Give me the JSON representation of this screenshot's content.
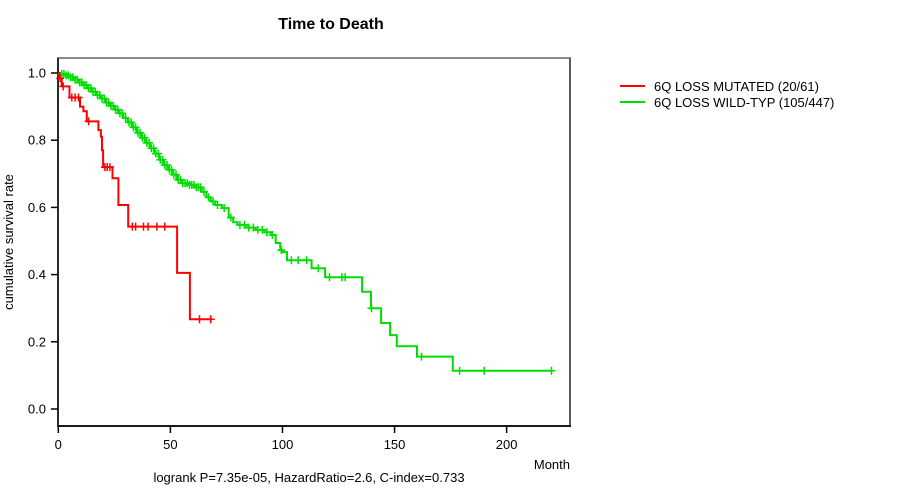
{
  "chart_data": {
    "type": "line",
    "subtype": "kaplan-meier-step",
    "title": "Time to Death",
    "xlabel": "Month",
    "ylabel": "cumulative survival rate",
    "xlim": [
      0,
      228
    ],
    "ylim": [
      0.0,
      1.0
    ],
    "x_ticks": [
      0,
      50,
      100,
      150,
      200
    ],
    "y_ticks": [
      0.0,
      0.2,
      0.4,
      0.6,
      0.8,
      1.0
    ],
    "grid": false,
    "legend_position": "right-outside",
    "annotation": "logrank P=7.35e-05, HazardRatio=2.6, C-index=0.733",
    "series": [
      {
        "name": "6Q LOSS MUTATED (20/61)",
        "color": "#ff0000",
        "steps": [
          [
            0,
            1.0
          ],
          [
            0.5,
            0.984
          ],
          [
            1.5,
            0.96
          ],
          [
            5,
            0.927
          ],
          [
            9.7,
            0.9
          ],
          [
            11.2,
            0.886
          ],
          [
            12.7,
            0.856
          ],
          [
            17.9,
            0.83
          ],
          [
            19,
            0.81
          ],
          [
            19.5,
            0.77
          ],
          [
            20,
            0.72
          ],
          [
            24.2,
            0.687
          ],
          [
            26.8,
            0.607
          ],
          [
            31.2,
            0.543
          ],
          [
            53,
            0.405
          ],
          [
            58.7,
            0.267
          ]
        ],
        "censor_times": [
          0.8,
          2.2,
          6,
          7.5,
          9,
          13.5,
          20.8,
          21.8,
          23,
          33,
          34.5,
          38,
          40,
          44,
          47.5,
          63,
          68
        ],
        "end_time": 68.5
      },
      {
        "name": "6Q LOSS WILD-TYP (105/447)",
        "color": "#00dd00",
        "steps": [
          [
            0,
            1.0
          ],
          [
            1,
            0.997
          ],
          [
            3,
            0.993
          ],
          [
            5,
            0.987
          ],
          [
            7,
            0.98
          ],
          [
            9,
            0.972
          ],
          [
            11,
            0.964
          ],
          [
            13,
            0.955
          ],
          [
            15,
            0.944
          ],
          [
            17,
            0.934
          ],
          [
            19,
            0.924
          ],
          [
            21,
            0.912
          ],
          [
            23,
            0.902
          ],
          [
            25,
            0.891
          ],
          [
            27,
            0.88
          ],
          [
            29,
            0.866
          ],
          [
            31,
            0.853
          ],
          [
            33,
            0.838
          ],
          [
            35,
            0.822
          ],
          [
            37,
            0.807
          ],
          [
            39,
            0.792
          ],
          [
            41,
            0.776
          ],
          [
            43,
            0.76
          ],
          [
            45,
            0.742
          ],
          [
            47,
            0.726
          ],
          [
            49,
            0.712
          ],
          [
            51,
            0.697
          ],
          [
            53,
            0.682
          ],
          [
            55,
            0.672
          ],
          [
            58,
            0.667
          ],
          [
            61,
            0.66
          ],
          [
            64,
            0.646
          ],
          [
            66,
            0.63
          ],
          [
            68,
            0.618
          ],
          [
            70,
            0.607
          ],
          [
            73,
            0.598
          ],
          [
            76,
            0.57
          ],
          [
            78,
            0.556
          ],
          [
            80,
            0.548
          ],
          [
            84,
            0.54
          ],
          [
            88,
            0.533
          ],
          [
            92,
            0.526
          ],
          [
            95,
            0.518
          ],
          [
            97,
            0.494
          ],
          [
            99,
            0.473
          ],
          [
            100,
            0.467
          ],
          [
            102,
            0.443
          ],
          [
            113,
            0.419
          ],
          [
            119,
            0.392
          ],
          [
            135.5,
            0.349
          ],
          [
            139.5,
            0.3
          ],
          [
            144,
            0.256
          ],
          [
            148,
            0.22
          ],
          [
            151,
            0.187
          ],
          [
            160,
            0.156
          ],
          [
            176,
            0.114
          ]
        ],
        "censor_times": [
          1.5,
          2.5,
          3.5,
          4.5,
          5.5,
          6.5,
          7.5,
          8.5,
          9.5,
          10.5,
          11.5,
          12.5,
          13.5,
          14.5,
          15.5,
          16.5,
          17.5,
          18.5,
          19.5,
          20.5,
          21.5,
          22.5,
          23.5,
          24.5,
          25.5,
          26.5,
          27.5,
          28.5,
          30,
          31.5,
          32.5,
          33.5,
          34.5,
          35.5,
          36.5,
          37.5,
          38.5,
          39.5,
          40.5,
          41.5,
          42.5,
          43.5,
          44.5,
          45.5,
          46.5,
          47.5,
          48.5,
          49.5,
          50.5,
          51.5,
          52.5,
          53.5,
          54.5,
          55.5,
          56.5,
          57.5,
          58.5,
          59.5,
          60.5,
          61.5,
          62.5,
          63.5,
          65,
          67,
          69,
          71,
          74,
          77,
          81,
          83,
          85,
          87,
          89,
          91,
          93,
          95.5,
          99.5,
          104,
          107,
          110.8,
          116,
          121,
          126.5,
          128,
          139.7,
          162,
          179,
          190,
          220
        ],
        "end_time": 220.5
      }
    ]
  }
}
